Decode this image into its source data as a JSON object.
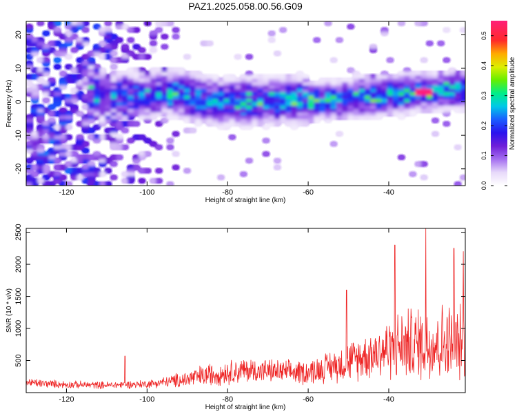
{
  "title": "PAZ1.2025.058.00.56.G09",
  "chart_data": [
    {
      "type": "heatmap",
      "xlabel": "Height of straight line (km)",
      "ylabel": "Frequency (Hz)",
      "xlim": [
        -130,
        -21
      ],
      "ylim": [
        -25,
        24
      ],
      "xticks": [
        -120,
        -100,
        -80,
        -60,
        -40
      ],
      "xtick_labels": [
        "-120",
        "-100",
        "-80",
        "-60",
        "-40"
      ],
      "yticks": [
        -20,
        -10,
        0,
        10,
        20
      ],
      "ytick_labels": [
        "-20",
        "-10",
        "0",
        "10",
        "20"
      ],
      "colorbar": {
        "label": "Normalized spectral amplitude",
        "range": [
          0,
          0.55
        ],
        "ticks": [
          0,
          0.1,
          0.2,
          0.3,
          0.4,
          0.5
        ],
        "tick_labels": [
          "0.0",
          "0.1",
          "0.2",
          "0.3",
          "0.4",
          "0.5"
        ]
      },
      "ridge": {
        "x": [
          -130,
          -115,
          -110,
          -100,
          -95,
          -90,
          -85,
          -80,
          -75,
          -70,
          -65,
          -60,
          -55,
          -50,
          -45,
          -40,
          -35,
          -30,
          -25,
          -21
        ],
        "y": [
          2.5,
          3,
          2,
          2,
          3,
          2,
          0.5,
          0,
          0,
          0.5,
          0.5,
          0.5,
          0.5,
          1,
          1.5,
          2,
          2.5,
          3,
          3.5,
          3.5
        ]
      },
      "peak": {
        "x": -31,
        "y": 3,
        "value": 0.55
      },
      "grid": false
    },
    {
      "type": "line",
      "xlabel": "Height of straight line (km)",
      "ylabel": "SNR (10 * v/v)",
      "xlim": [
        -130,
        -21
      ],
      "ylim": [
        0,
        2560
      ],
      "xticks": [
        -120,
        -100,
        -80,
        -60,
        -40
      ],
      "xtick_labels": [
        "-120",
        "-100",
        "-80",
        "-60",
        "-40"
      ],
      "yticks": [
        500,
        1000,
        1500,
        2000,
        2500
      ],
      "ytick_labels": [
        "500",
        "1000",
        "1500",
        "2000",
        "2500"
      ],
      "color": "#ee2222",
      "envelope": {
        "x": [
          -130,
          -120,
          -110,
          -100,
          -95,
          -90,
          -85,
          -80,
          -75,
          -70,
          -65,
          -60,
          -55,
          -50,
          -45,
          -40,
          -35,
          -30,
          -25,
          -21
        ],
        "base": [
          150,
          120,
          110,
          130,
          160,
          200,
          260,
          300,
          330,
          320,
          300,
          300,
          380,
          450,
          560,
          640,
          700,
          720,
          720,
          700
        ],
        "amplitude": [
          150,
          120,
          120,
          130,
          180,
          300,
          380,
          400,
          420,
          380,
          380,
          420,
          500,
          650,
          800,
          1000,
          1200,
          1300,
          1300,
          1200
        ]
      },
      "spikes": [
        {
          "x": -105.5,
          "y": 570
        },
        {
          "x": -50.5,
          "y": 1600
        },
        {
          "x": -38.5,
          "y": 2300
        },
        {
          "x": -30.8,
          "y": 2580
        },
        {
          "x": -23.8,
          "y": 2250
        },
        {
          "x": -21.5,
          "y": 2200
        }
      ],
      "grid": false
    }
  ]
}
